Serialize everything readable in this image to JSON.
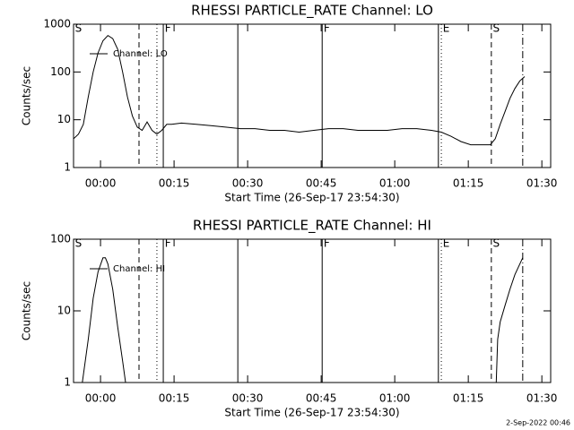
{
  "chart_data": [
    {
      "type": "line",
      "title": "RHESSI PARTICLE_RATE Channel: LO",
      "xlabel": "Start Time (26-Sep-17 23:54:30)",
      "ylabel": "Counts/sec",
      "log_y": true,
      "legend": "upper-left",
      "x": [
        0,
        1,
        2,
        3,
        4,
        5,
        6,
        7,
        8,
        9,
        10,
        11,
        12,
        13,
        14,
        15,
        16,
        17,
        18,
        19,
        20,
        22,
        25,
        28,
        31,
        34,
        37,
        40,
        43,
        46,
        49,
        52,
        55,
        58,
        61,
        64,
        67,
        70,
        73,
        75,
        77,
        79,
        81,
        83,
        85,
        86,
        87,
        88,
        89,
        90,
        91,
        92
      ],
      "series": [
        {
          "name": "Channel: LO",
          "color": "#000000",
          "values": [
            4,
            5,
            8,
            30,
            100,
            250,
            450,
            580,
            500,
            300,
            100,
            30,
            12,
            7,
            6,
            9,
            6,
            5,
            6,
            8,
            8,
            8.5,
            8,
            7.5,
            7,
            6.5,
            6.5,
            6,
            6,
            5.5,
            6,
            6.5,
            6.5,
            6,
            6,
            6,
            6.5,
            6.5,
            6,
            5.5,
            4.5,
            3.5,
            3,
            3,
            3,
            4,
            8,
            15,
            28,
            45,
            65,
            80
          ]
        }
      ],
      "xlim": [
        0,
        97.3
      ],
      "ylim": [
        1,
        1000
      ],
      "xticks": [
        {
          "value": 5.5,
          "label": "00:00"
        },
        {
          "value": 20.5,
          "label": "00:15"
        },
        {
          "value": 35.5,
          "label": "00:30"
        },
        {
          "value": 50.5,
          "label": "00:45"
        },
        {
          "value": 65.5,
          "label": "01:00"
        },
        {
          "value": 80.5,
          "label": "01:15"
        },
        {
          "value": 95.5,
          "label": "01:30"
        }
      ],
      "yticks": [
        1,
        10,
        100,
        1000
      ],
      "vlines": [
        {
          "x": 13.35,
          "style": "dashed"
        },
        {
          "x": 17.0,
          "style": "dotted"
        },
        {
          "x": 18.3,
          "style": "solid"
        },
        {
          "x": 33.5,
          "style": "solid"
        },
        {
          "x": 50.7,
          "style": "solid"
        },
        {
          "x": 74.4,
          "style": "solid"
        },
        {
          "x": 75.0,
          "style": "dotted"
        },
        {
          "x": 85.2,
          "style": "dashed"
        },
        {
          "x": 91.6,
          "style": "dashdot"
        }
      ],
      "vline_labels": [
        {
          "x": 0.3,
          "text": "S"
        },
        {
          "x": 18.6,
          "text": "F"
        },
        {
          "x": 51.0,
          "text": "F"
        },
        {
          "x": 75.3,
          "text": "E"
        },
        {
          "x": 85.5,
          "text": "S"
        }
      ]
    },
    {
      "type": "line",
      "title": "RHESSI PARTICLE_RATE Channel: HI",
      "xlabel": "Start Time (26-Sep-17 23:54:30)",
      "ylabel": "Counts/sec",
      "log_y": true,
      "legend": "upper-left",
      "x": [
        1.8,
        3,
        4,
        5,
        6,
        6.5,
        7,
        8,
        9,
        10,
        10.6,
        40,
        86.2,
        86.5,
        87,
        88,
        89,
        90,
        91,
        91.6
      ],
      "series": [
        {
          "name": "Channel: HI",
          "color": "#000000",
          "values": [
            1,
            4,
            15,
            35,
            55,
            55,
            45,
            20,
            6,
            2,
            1,
            null,
            1,
            4,
            7,
            12,
            20,
            32,
            45,
            55
          ]
        }
      ],
      "xlim": [
        0,
        97.3
      ],
      "ylim": [
        1,
        100
      ],
      "xticks": [
        {
          "value": 5.5,
          "label": "00:00"
        },
        {
          "value": 20.5,
          "label": "00:15"
        },
        {
          "value": 35.5,
          "label": "00:30"
        },
        {
          "value": 50.5,
          "label": "00:45"
        },
        {
          "value": 65.5,
          "label": "01:00"
        },
        {
          "value": 80.5,
          "label": "01:15"
        },
        {
          "value": 95.5,
          "label": "01:30"
        }
      ],
      "yticks": [
        1,
        10,
        100
      ],
      "vlines": [
        {
          "x": 13.35,
          "style": "dashed"
        },
        {
          "x": 17.0,
          "style": "dotted"
        },
        {
          "x": 18.3,
          "style": "solid"
        },
        {
          "x": 33.5,
          "style": "solid"
        },
        {
          "x": 50.7,
          "style": "solid"
        },
        {
          "x": 74.4,
          "style": "solid"
        },
        {
          "x": 75.0,
          "style": "dotted"
        },
        {
          "x": 85.2,
          "style": "dashed"
        },
        {
          "x": 91.6,
          "style": "dashdot"
        }
      ],
      "vline_labels": [
        {
          "x": 0.3,
          "text": "S"
        },
        {
          "x": 18.6,
          "text": "F"
        },
        {
          "x": 51.0,
          "text": "F"
        },
        {
          "x": 75.3,
          "text": "E"
        },
        {
          "x": 85.5,
          "text": "S"
        }
      ]
    }
  ],
  "footer": "2-Sep-2022 00:46"
}
